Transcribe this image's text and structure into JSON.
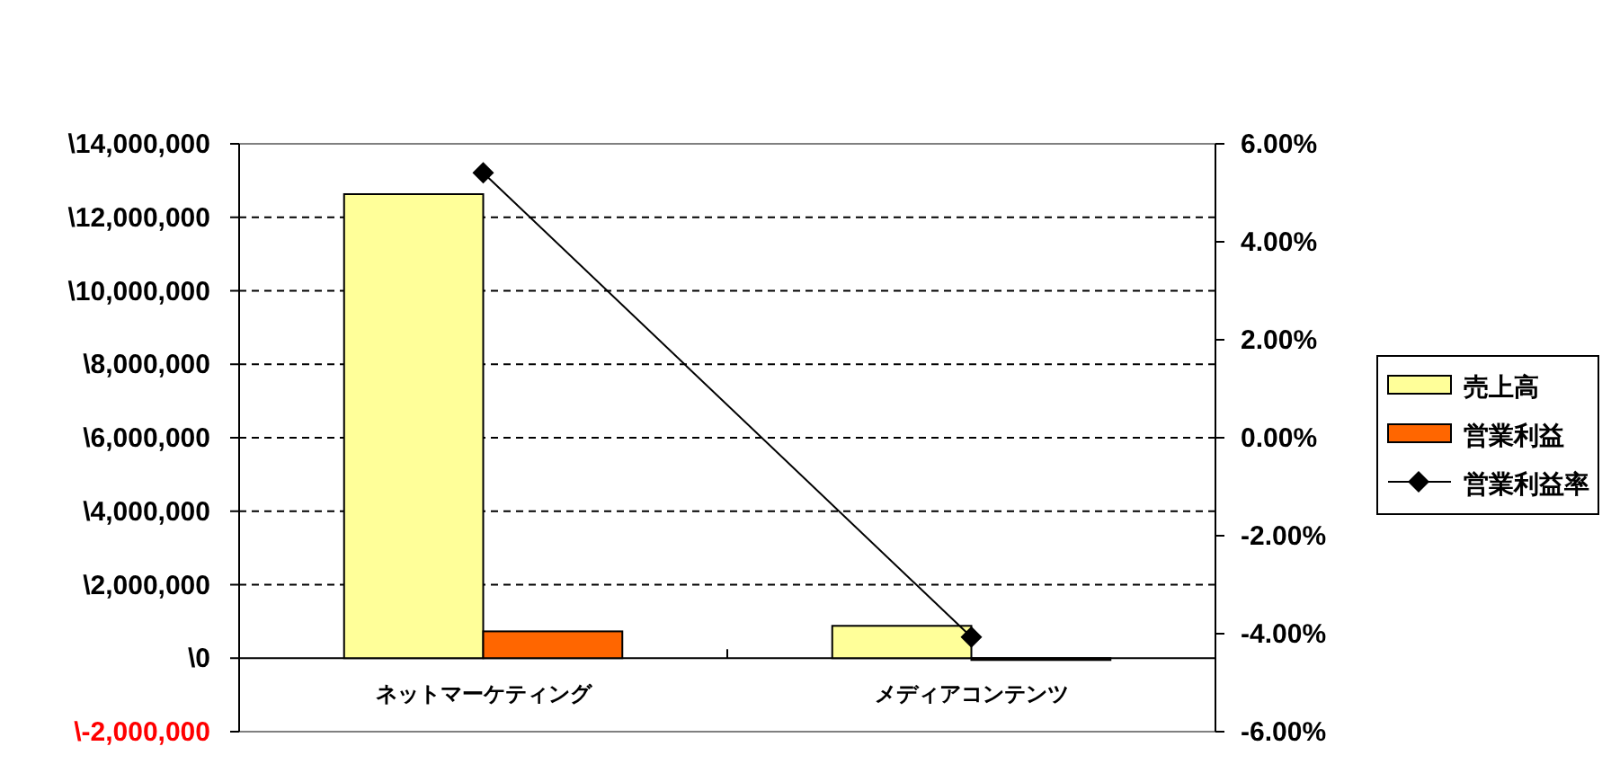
{
  "chart_data": {
    "type": "bar",
    "categories": [
      "ネットマーケティング",
      "メディアコンテンツ"
    ],
    "series": [
      {
        "name": "売上高",
        "color": "#ffff99",
        "values": [
          12630000,
          880000
        ]
      },
      {
        "name": "営業利益",
        "color": "#ff6600",
        "values": [
          730000,
          -50000
        ]
      },
      {
        "name": "営業利益率",
        "type": "line",
        "axis": "y2",
        "color": "#000000",
        "marker": "diamond",
        "values": [
          5.41,
          -4.07
        ]
      }
    ],
    "ylim": [
      -2000000,
      14000000
    ],
    "yticks": [
      {
        "value": -2000000,
        "label": "\\-2,000,000"
      },
      {
        "value": 0,
        "label": "\\0"
      },
      {
        "value": 2000000,
        "label": "\\2,000,000"
      },
      {
        "value": 4000000,
        "label": "\\4,000,000"
      },
      {
        "value": 6000000,
        "label": "\\6,000,000"
      },
      {
        "value": 8000000,
        "label": "\\8,000,000"
      },
      {
        "value": 10000000,
        "label": "\\10,000,000"
      },
      {
        "value": 12000000,
        "label": "\\12,000,000"
      },
      {
        "value": 14000000,
        "label": "\\14,000,000"
      }
    ],
    "y2lim": [
      -6,
      6
    ],
    "y2ticks": [
      {
        "value": -6,
        "label": "-6.00%"
      },
      {
        "value": -4,
        "label": "-4.00%"
      },
      {
        "value": -2,
        "label": "-2.00%"
      },
      {
        "value": 0,
        "label": "0.00%"
      },
      {
        "value": 2,
        "label": "2.00%"
      },
      {
        "value": 4,
        "label": "4.00%"
      },
      {
        "value": 6,
        "label": "6.00%"
      }
    ],
    "grid": "y",
    "legend": "right"
  }
}
